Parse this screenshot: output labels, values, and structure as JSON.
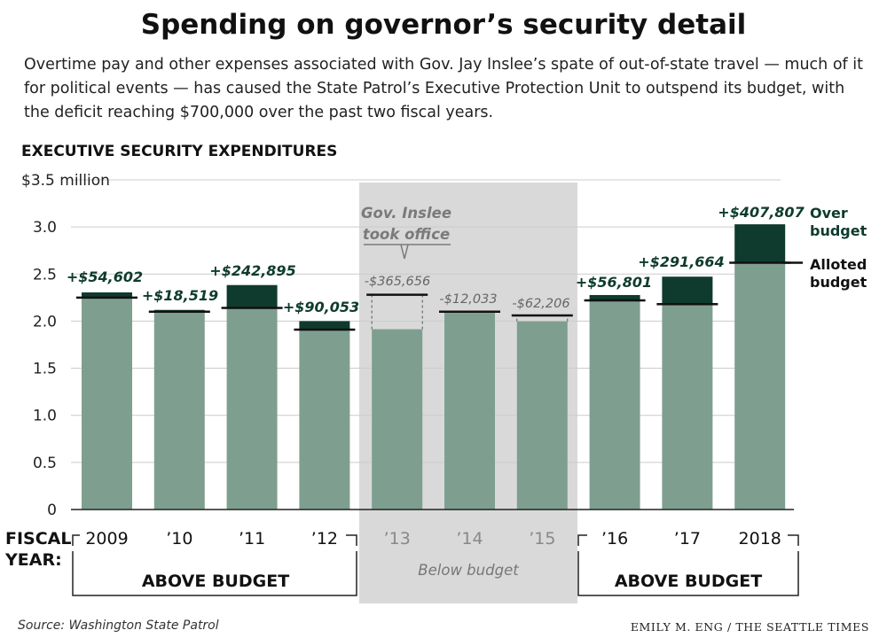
{
  "title": "Spending on governor’s security detail",
  "subtitle": "Overtime pay and other expenses associated with Gov. Jay Inslee’s spate of out-of-state travel — much of it for political events — has caused the State Patrol’s Executive Protection Unit to outspend its budget, with the deficit reaching $700,000 over the past two fiscal years.",
  "chart_data": {
    "type": "bar",
    "title": "EXECUTIVE SECURITY EXPENDITURES",
    "ylabel": "",
    "y_unit_label": "$3.5 million",
    "ylim": [
      0,
      3.5
    ],
    "yticks": [
      0,
      0.5,
      1.0,
      1.5,
      2.0,
      2.5,
      3.0
    ],
    "ytick_labels": [
      "0",
      "0.5",
      "1.0",
      "1.5",
      "2.0",
      "2.5",
      "3.0"
    ],
    "xlabel": "FISCAL YEAR:",
    "xlabel_line1": "FISCAL",
    "xlabel_line2": "YEAR:",
    "categories": [
      "2009",
      "’10",
      "’11",
      "’12",
      "’13",
      "’14",
      "’15",
      "’16",
      "’17",
      "2018"
    ],
    "budget": [
      2.25,
      2.1,
      2.14,
      1.91,
      2.28,
      2.1,
      2.06,
      2.22,
      2.18,
      2.62
    ],
    "spent": [
      2.305,
      2.119,
      2.383,
      2.0,
      1.914,
      2.088,
      1.998,
      2.277,
      2.472,
      3.028
    ],
    "difference_labels": [
      "+$54,602",
      "+$18,519",
      "+$242,895",
      "+$90,053",
      "-$365,656",
      "-$12,033",
      "-$62,206",
      "+$56,801",
      "+$291,664",
      "+$407,807"
    ],
    "grid": true,
    "legend": [
      {
        "name": "Over budget",
        "color": "#0e3b2e"
      },
      {
        "name": "Alloted budget",
        "color": "#111111"
      }
    ],
    "annotations": {
      "took_office": [
        "Gov. Inslee",
        "took office"
      ],
      "above_budget": "ABOVE BUDGET",
      "below_budget": "Below budget"
    },
    "colors": {
      "spent": "#7e9f90",
      "over": "#0e3b2e",
      "shade": "#d9d9d9"
    }
  },
  "footer": {
    "source": "Source: Washington State Patrol",
    "credit": "EMILY M. ENG / THE SEATTLE TIMES"
  }
}
